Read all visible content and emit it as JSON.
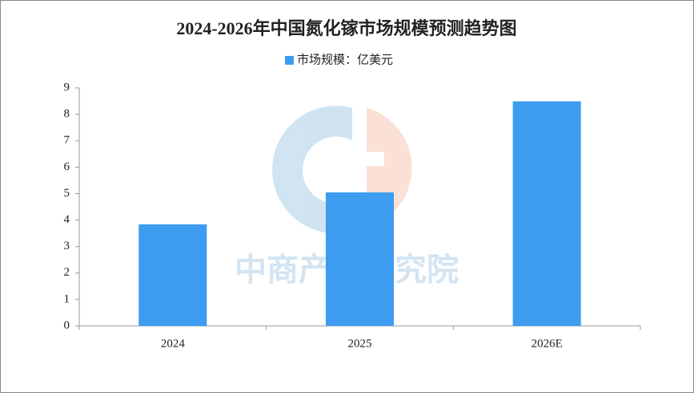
{
  "chart_data": {
    "type": "bar",
    "title": "2024-2026年中国氮化镓市场规模预测趋势图",
    "categories": [
      "2024",
      "2025",
      "2026E"
    ],
    "series": [
      {
        "name": "市场规模：亿美元",
        "color": "#3d9cf0",
        "values": [
          3.84,
          5.05,
          8.49
        ]
      }
    ],
    "ylim": [
      0,
      9
    ],
    "yticks": [
      0,
      1,
      2,
      3,
      4,
      5,
      6,
      7,
      8,
      9
    ],
    "grid": false,
    "legend": "top",
    "watermark": "中商产业研究院"
  }
}
